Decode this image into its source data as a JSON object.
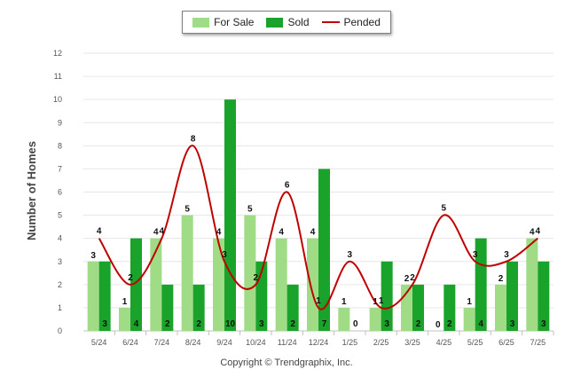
{
  "chart_data": {
    "type": "bar",
    "categories": [
      "5/24",
      "6/24",
      "7/24",
      "8/24",
      "9/24",
      "10/24",
      "11/24",
      "12/24",
      "1/25",
      "2/25",
      "3/25",
      "4/25",
      "5/25",
      "6/25",
      "7/25"
    ],
    "series": [
      {
        "name": "For Sale",
        "type": "bar",
        "color": "#9fdc85",
        "values": [
          3,
          1,
          4,
          5,
          4,
          5,
          4,
          4,
          1,
          1,
          2,
          0,
          1,
          2,
          4
        ]
      },
      {
        "name": "Sold",
        "type": "bar",
        "color": "#1aa32a",
        "values": [
          3,
          4,
          2,
          2,
          10,
          3,
          2,
          7,
          0,
          3,
          2,
          2,
          4,
          3,
          3
        ]
      },
      {
        "name": "Pended",
        "type": "line",
        "color": "#c00000",
        "values": [
          4,
          2,
          4,
          8,
          3,
          2,
          6,
          1,
          3,
          1,
          2,
          5,
          3,
          3,
          4
        ]
      }
    ],
    "pended_labels": [
      "4",
      "2",
      "4",
      "8",
      "3",
      "2",
      "6",
      "1",
      "3",
      "1",
      "2",
      "5",
      "3",
      "3",
      "4"
    ],
    "ylabel": "Number of Homes",
    "ylim": [
      0,
      12
    ],
    "yticks": [
      0,
      1,
      2,
      3,
      4,
      5,
      6,
      7,
      8,
      9,
      10,
      11,
      12
    ],
    "grid": true,
    "legend_position": "top-center"
  },
  "legend": {
    "for_sale": "For Sale",
    "sold": "Sold",
    "pended": "Pended"
  },
  "footer": {
    "copyright": "Copyright © Trendgraphix, Inc."
  }
}
